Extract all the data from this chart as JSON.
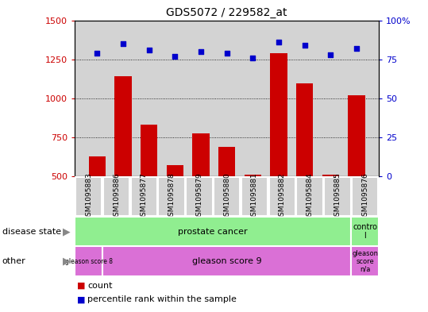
{
  "title": "GDS5072 / 229582_at",
  "samples": [
    "GSM1095883",
    "GSM1095886",
    "GSM1095877",
    "GSM1095878",
    "GSM1095879",
    "GSM1095880",
    "GSM1095881",
    "GSM1095882",
    "GSM1095884",
    "GSM1095885",
    "GSM1095876"
  ],
  "counts": [
    630,
    1140,
    830,
    570,
    775,
    690,
    510,
    1290,
    1095,
    510,
    1020
  ],
  "percentiles": [
    79,
    85,
    81,
    77,
    80,
    79,
    76,
    86,
    84,
    78,
    82
  ],
  "ylim_left": [
    500,
    1500
  ],
  "ylim_right": [
    0,
    100
  ],
  "yticks_left": [
    500,
    750,
    1000,
    1250,
    1500
  ],
  "yticks_right": [
    0,
    25,
    50,
    75,
    100
  ],
  "bar_color": "#cc0000",
  "dot_color": "#0000cc",
  "bg_color": "#d3d3d3",
  "tick_bg_color": "#d3d3d3",
  "prostate_cancer_label": "prostate cancer",
  "prostate_cancer_color": "#90ee90",
  "control_label": "contro\nl",
  "control_color": "#90ee90",
  "gleason8_label": "gleason score 8",
  "gleason8_color": "#da70d6",
  "gleason9_label": "gleason score 9",
  "gleason9_color": "#da70d6",
  "na_label": "gleason\nscore\nn/a",
  "na_color": "#da70d6",
  "legend_count": "count",
  "legend_pct": "percentile rank within the sample",
  "row_label_disease": "disease state",
  "row_label_other": "other",
  "arrow": "▶"
}
